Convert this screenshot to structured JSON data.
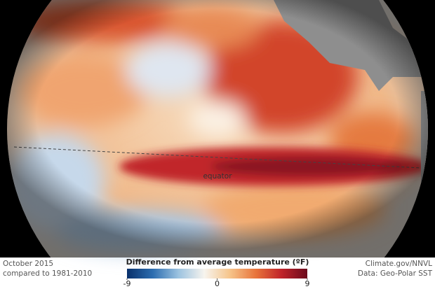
{
  "map": {
    "annotation": "equator"
  },
  "caption": {
    "date": "October 2015",
    "baseline": "compared to 1981-2010"
  },
  "legend": {
    "title": "Difference from average temperature (ºF)",
    "range": [
      -9,
      9
    ],
    "ticks": [
      -9,
      0,
      9
    ],
    "colors": [
      "#08306b",
      "#2c6db0",
      "#9cc3e0",
      "#f7f4ee",
      "#f6c48a",
      "#e8743b",
      "#c0232a",
      "#6b0a1c"
    ]
  },
  "credits": {
    "source": "Climate.gov/NNVL",
    "data": "Data: Geo-Polar SST"
  }
}
